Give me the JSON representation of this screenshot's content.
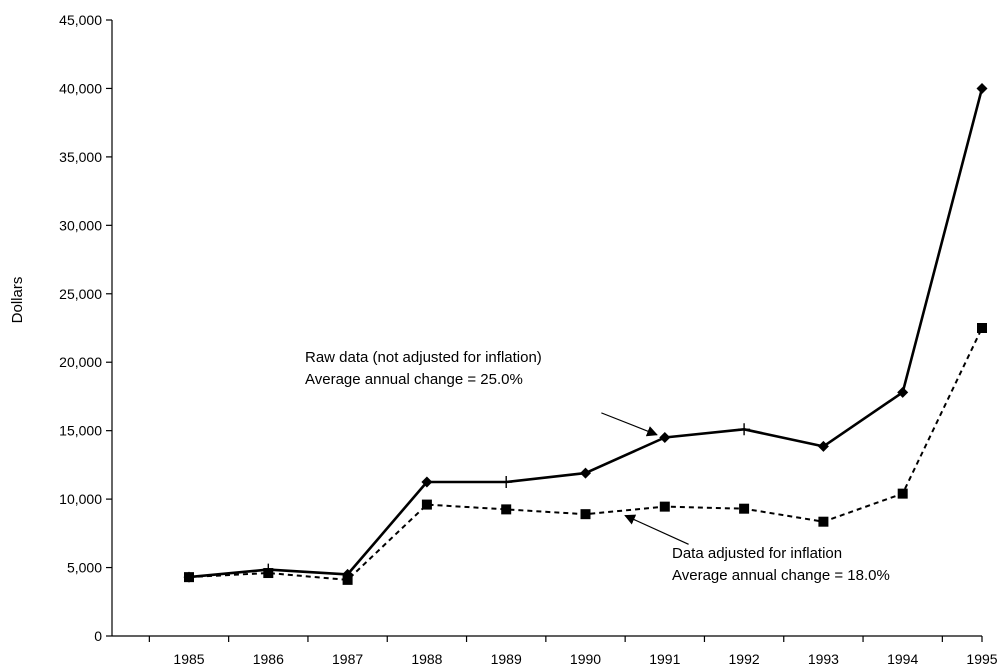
{
  "chart_data": {
    "type": "line",
    "title": "",
    "xlabel": "",
    "ylabel": "Dollars",
    "categories": [
      "1985",
      "1986",
      "1987",
      "1988",
      "1989",
      "1990",
      "1991",
      "1992",
      "1993",
      "1994",
      "1995"
    ],
    "ylim": [
      0,
      45000
    ],
    "yticks": [
      0,
      5000,
      10000,
      15000,
      20000,
      25000,
      30000,
      35000,
      40000,
      45000
    ],
    "ytick_labels": [
      "0",
      "5,000",
      "10,000",
      "15,000",
      "20,000",
      "25,000",
      "30,000",
      "35,000",
      "40,000",
      "45,000"
    ],
    "grid": false,
    "series": [
      {
        "values": [
          4300,
          4850,
          4500,
          11250,
          11250,
          11900,
          14500,
          15100,
          13850,
          17800,
          40000
        ],
        "color": "#000000",
        "line_style": "solid",
        "markers": [
          "diamond",
          "plus",
          "diamond",
          "diamond",
          "plus",
          "diamond",
          "diamond",
          "plus",
          "diamond",
          "diamond",
          "diamond"
        ]
      },
      {
        "values": [
          4300,
          4600,
          4100,
          9600,
          9250,
          8900,
          9450,
          9300,
          8350,
          10400,
          22500
        ],
        "color": "#000000",
        "line_style": "dashed",
        "markers": [
          "square",
          "square",
          "square",
          "square",
          "square",
          "square",
          "square",
          "square",
          "square",
          "square",
          "square"
        ]
      }
    ],
    "annotations": [
      {
        "lines": [
          "Raw data (not adjusted for inflation)",
          "Average annual change = 25.0%"
        ],
        "arrow_from": [
          1990.2,
          16300
        ],
        "arrow_to": [
          1990.9,
          14700
        ]
      },
      {
        "lines": [
          "Data adjusted for inflation",
          "Average annual change = 18.0%"
        ],
        "arrow_from": [
          1991.3,
          6700
        ],
        "arrow_to": [
          1990.5,
          8800
        ]
      }
    ]
  }
}
